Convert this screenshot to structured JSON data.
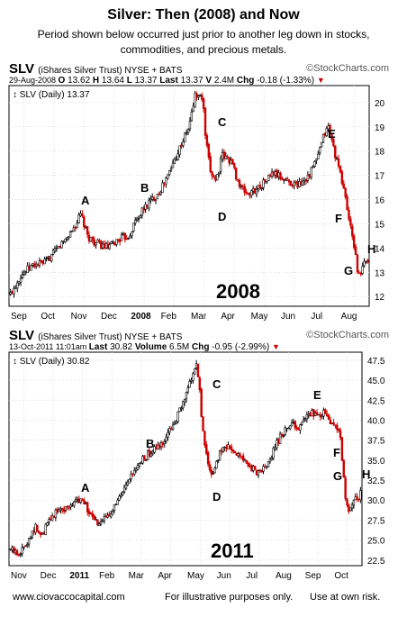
{
  "title": "Silver:  Then (2008) and Now",
  "subtitle_lines": [
    "Period shown below occurred just prior to another leg down in stocks,",
    "commodities, and precious metals."
  ],
  "footer": {
    "site": "www.ciovaccocapital.com",
    "note": "For illustrative purposes only.",
    "risk": "Use at own risk."
  },
  "panels": [
    {
      "header": {
        "symbol": "SLV",
        "name": "(iShares Silver Trust)",
        "exchange": "NYSE + BATS",
        "logo": "©StockCharts.com",
        "date": "29-Aug-2008",
        "quote": [
          {
            "k": "O",
            "v": "13.62"
          },
          {
            "k": "H",
            "v": "13.64"
          },
          {
            "k": "L",
            "v": "13.37"
          },
          {
            "k": "Last",
            "v": "13.37"
          },
          {
            "k": "V",
            "v": "2.4M"
          },
          {
            "k": "Chg",
            "v": "-0.18 (-1.33%)"
          }
        ],
        "legend": "SLV (Daily) 13.37"
      },
      "chart_data": {
        "type": "candlestick",
        "big_label": "2008",
        "ylim": [
          11.6,
          20.7
        ],
        "yticks": [
          "12",
          "13",
          "14",
          "15",
          "16",
          "17",
          "18",
          "19",
          "20"
        ],
        "xticks": [
          "Sep",
          "Oct",
          "Nov",
          "Dec",
          "2008",
          "Feb",
          "Mar",
          "Apr",
          "May",
          "Jun",
          "Jul",
          "Aug"
        ],
        "x_start_month": "Sep 2007",
        "annotations": [
          "A",
          "B",
          "C",
          "D",
          "E",
          "F",
          "G",
          "H"
        ],
        "series": [
          {
            "x_month": 0.05,
            "y": 12.1
          },
          {
            "x_month": 0.4,
            "y": 12.9
          },
          {
            "x_month": 0.8,
            "y": 13.3
          },
          {
            "x_month": 1.2,
            "y": 13.4
          },
          {
            "x_month": 1.5,
            "y": 13.8
          },
          {
            "x_month": 1.9,
            "y": 14.4
          },
          {
            "x_month": 2.2,
            "y": 14.9
          },
          {
            "x_month": 2.4,
            "y": 15.4
          },
          {
            "x_month": 2.6,
            "y": 14.5
          },
          {
            "x_month": 2.9,
            "y": 14.2
          },
          {
            "x_month": 3.3,
            "y": 14.0
          },
          {
            "x_month": 3.7,
            "y": 14.4
          },
          {
            "x_month": 4.0,
            "y": 14.5
          },
          {
            "x_month": 4.2,
            "y": 15.1
          },
          {
            "x_month": 4.6,
            "y": 15.8
          },
          {
            "x_month": 5.0,
            "y": 16.3
          },
          {
            "x_month": 5.3,
            "y": 17.0
          },
          {
            "x_month": 5.6,
            "y": 17.9
          },
          {
            "x_month": 6.0,
            "y": 19.0
          },
          {
            "x_month": 6.2,
            "y": 20.3
          },
          {
            "x_month": 6.45,
            "y": 20.2
          },
          {
            "x_month": 6.55,
            "y": 18.5
          },
          {
            "x_month": 6.7,
            "y": 17.2
          },
          {
            "x_month": 6.9,
            "y": 16.8
          },
          {
            "x_month": 7.1,
            "y": 17.8
          },
          {
            "x_month": 7.4,
            "y": 17.6
          },
          {
            "x_month": 7.7,
            "y": 16.5
          },
          {
            "x_month": 8.0,
            "y": 16.2
          },
          {
            "x_month": 8.4,
            "y": 16.6
          },
          {
            "x_month": 8.8,
            "y": 17.1
          },
          {
            "x_month": 9.2,
            "y": 16.8
          },
          {
            "x_month": 9.6,
            "y": 16.6
          },
          {
            "x_month": 10.0,
            "y": 17.0
          },
          {
            "x_month": 10.3,
            "y": 17.8
          },
          {
            "x_month": 10.5,
            "y": 18.7
          },
          {
            "x_month": 10.65,
            "y": 19.0
          },
          {
            "x_month": 10.8,
            "y": 18.2
          },
          {
            "x_month": 11.0,
            "y": 17.2
          },
          {
            "x_month": 11.15,
            "y": 16.5
          },
          {
            "x_month": 11.3,
            "y": 15.4
          },
          {
            "x_month": 11.45,
            "y": 14.3
          },
          {
            "x_month": 11.55,
            "y": 13.8
          },
          {
            "x_month": 11.62,
            "y": 12.9
          },
          {
            "x_month": 11.7,
            "y": 12.8
          },
          {
            "x_month": 11.8,
            "y": 13.3
          },
          {
            "x_month": 11.9,
            "y": 13.5
          },
          {
            "x_month": 12.0,
            "y": 13.4
          }
        ]
      }
    },
    {
      "header": {
        "symbol": "SLV",
        "name": "(iShares Silver Trust)",
        "exchange": "NYSE + BATS",
        "logo": "©StockCharts.com",
        "date": "13-Oct-2011 11:01am",
        "quote": [
          {
            "k": "Last",
            "v": "30.82"
          },
          {
            "k": "Volume",
            "v": "6.5M"
          },
          {
            "k": "Chg",
            "v": "-0.95 (-2.99%)"
          }
        ],
        "legend": "SLV (Daily) 30.82"
      },
      "chart_data": {
        "type": "candlestick",
        "big_label": "2011",
        "ylim": [
          21.8,
          48.5
        ],
        "yticks": [
          "22.5",
          "25.0",
          "27.5",
          "30.0",
          "32.5",
          "35.0",
          "37.5",
          "40.0",
          "42.5",
          "45.0",
          "47.5"
        ],
        "xticks": [
          "Nov",
          "Dec",
          "2011",
          "Feb",
          "Mar",
          "Apr",
          "May",
          "Jun",
          "Jul",
          "Aug",
          "Sep",
          "Oct"
        ],
        "x_start_month": "Oct 2010",
        "annotations": [
          "A",
          "B",
          "C",
          "D",
          "E",
          "F",
          "G",
          "H"
        ],
        "series": [
          {
            "x_month": 0.05,
            "y": 23.8
          },
          {
            "x_month": 0.3,
            "y": 23.3
          },
          {
            "x_month": 0.5,
            "y": 24.0
          },
          {
            "x_month": 0.7,
            "y": 25.5
          },
          {
            "x_month": 0.9,
            "y": 26.6
          },
          {
            "x_month": 1.1,
            "y": 25.3
          },
          {
            "x_month": 1.3,
            "y": 27.0
          },
          {
            "x_month": 1.6,
            "y": 28.6
          },
          {
            "x_month": 1.9,
            "y": 29.0
          },
          {
            "x_month": 2.2,
            "y": 29.6
          },
          {
            "x_month": 2.5,
            "y": 30.4
          },
          {
            "x_month": 2.7,
            "y": 28.5
          },
          {
            "x_month": 2.9,
            "y": 27.4
          },
          {
            "x_month": 3.1,
            "y": 26.8
          },
          {
            "x_month": 3.3,
            "y": 28.0
          },
          {
            "x_month": 3.6,
            "y": 29.2
          },
          {
            "x_month": 3.9,
            "y": 31.0
          },
          {
            "x_month": 4.2,
            "y": 33.2
          },
          {
            "x_month": 4.5,
            "y": 34.8
          },
          {
            "x_month": 4.8,
            "y": 36.0
          },
          {
            "x_month": 5.1,
            "y": 36.6
          },
          {
            "x_month": 5.4,
            "y": 38.2
          },
          {
            "x_month": 5.7,
            "y": 40.3
          },
          {
            "x_month": 6.0,
            "y": 42.8
          },
          {
            "x_month": 6.2,
            "y": 45.3
          },
          {
            "x_month": 6.35,
            "y": 47.0
          },
          {
            "x_month": 6.45,
            "y": 45.0
          },
          {
            "x_month": 6.55,
            "y": 40.5
          },
          {
            "x_month": 6.65,
            "y": 36.5
          },
          {
            "x_month": 6.8,
            "y": 34.0
          },
          {
            "x_month": 6.95,
            "y": 33.0
          },
          {
            "x_month": 7.1,
            "y": 35.2
          },
          {
            "x_month": 7.3,
            "y": 37.0
          },
          {
            "x_month": 7.6,
            "y": 36.3
          },
          {
            "x_month": 7.9,
            "y": 35.2
          },
          {
            "x_month": 8.2,
            "y": 34.2
          },
          {
            "x_month": 8.5,
            "y": 33.3
          },
          {
            "x_month": 8.8,
            "y": 34.5
          },
          {
            "x_month": 9.1,
            "y": 37.2
          },
          {
            "x_month": 9.4,
            "y": 38.8
          },
          {
            "x_month": 9.7,
            "y": 39.4
          },
          {
            "x_month": 9.9,
            "y": 39.0
          },
          {
            "x_month": 10.1,
            "y": 40.3
          },
          {
            "x_month": 10.3,
            "y": 41.2
          },
          {
            "x_month": 10.5,
            "y": 40.3
          },
          {
            "x_month": 10.7,
            "y": 41.0
          },
          {
            "x_month": 10.9,
            "y": 40.0
          },
          {
            "x_month": 11.1,
            "y": 39.2
          },
          {
            "x_month": 11.25,
            "y": 38.3
          },
          {
            "x_month": 11.35,
            "y": 34.0
          },
          {
            "x_month": 11.45,
            "y": 30.0
          },
          {
            "x_month": 11.55,
            "y": 28.2
          },
          {
            "x_month": 11.65,
            "y": 29.5
          },
          {
            "x_month": 11.75,
            "y": 30.5
          },
          {
            "x_month": 11.85,
            "y": 29.8
          },
          {
            "x_month": 11.95,
            "y": 30.8
          }
        ]
      }
    }
  ]
}
